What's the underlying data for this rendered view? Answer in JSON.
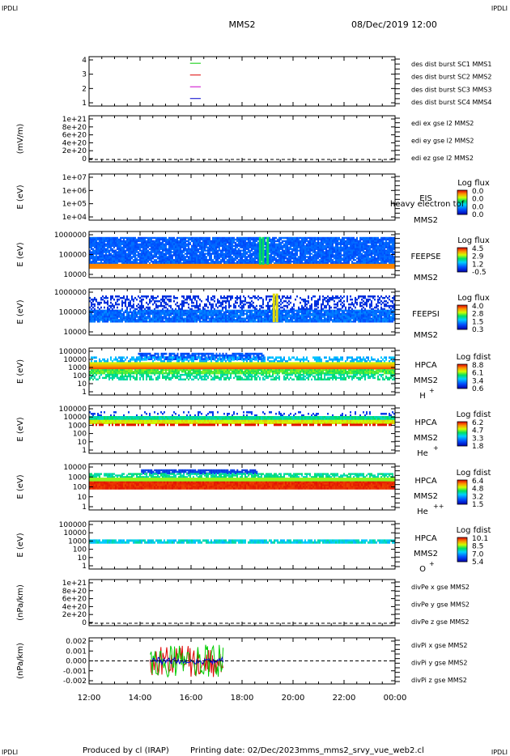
{
  "header": {
    "corner_tl": "IPDLI",
    "corner_tr": "IPDLI",
    "corner_bl": "IPDLI",
    "corner_br": "IPDLI",
    "spacecraft": "MMS2",
    "datetime": "08/Dec/2019 12:00"
  },
  "footer": {
    "produced": "Produced by cl (IRAP)",
    "printing": "Printing date: 02/Dec/2023",
    "script": "mms_mms2_srvy_vue_web2.cl"
  },
  "chart_data": {
    "type": "spectrogram-stack",
    "x_ticks": [
      "12:00",
      "14:00",
      "16:00",
      "18:00",
      "20:00",
      "22:00",
      "00:00"
    ],
    "panels": [
      {
        "id": "burst",
        "ylabel": "",
        "yticks": [
          "4",
          "3",
          "2",
          "1"
        ],
        "legend": [
          {
            "text": "des dist burst SC1 MMS1",
            "color": "#0000cc"
          },
          {
            "text": "des dist burst SC2 MMS2",
            "color": "#cc00cc"
          },
          {
            "text": "des dist burst SC3 MMS3",
            "color": "#dd0000"
          },
          {
            "text": "des dist burst SC4 MMS4",
            "color": "#00cc00"
          }
        ],
        "markers": [
          {
            "level": 4,
            "color": "#00cc00"
          },
          {
            "level": 3,
            "color": "#dd0000"
          },
          {
            "level": 2,
            "color": "#cc00cc"
          },
          {
            "level": 1,
            "color": "#0000cc"
          }
        ]
      },
      {
        "id": "edi",
        "ylabel": "(mV/m)",
        "yticks": [
          "1e+21",
          "8e+20",
          "6e+20",
          "4e+20",
          "2e+20",
          "0"
        ],
        "legend": [
          {
            "text": "edi ex gse l2 MMS2",
            "color": "#dd0000"
          },
          {
            "text": "edi ey gse l2 MMS2",
            "color": "#00cc00"
          },
          {
            "text": "edi ez gse l2 MMS2",
            "color": "#0000cc"
          }
        ]
      },
      {
        "id": "eis",
        "ylabel": "E (eV)",
        "yticks": [
          "1e+07",
          "1e+06",
          "1e+05",
          "1e+04"
        ],
        "inst": "EIS",
        "inst2": "MMS2",
        "extra": "heavy electron tof",
        "cbar_title": "Log flux",
        "cbar_ticks": [
          "0.0",
          "0.0",
          "0.0",
          "0.0"
        ]
      },
      {
        "id": "feepse",
        "ylabel": "E (eV)",
        "yticks": [
          "1000000",
          "100000",
          "10000"
        ],
        "inst": "FEEPSE",
        "inst2": "MMS2",
        "cbar_title": "Log flux",
        "cbar_ticks": [
          "4.5",
          "2.9",
          "1.2",
          "-0.5"
        ]
      },
      {
        "id": "feepsi",
        "ylabel": "E (eV)",
        "yticks": [
          "1000000",
          "100000",
          "10000"
        ],
        "inst": "FEEPSI",
        "inst2": "MMS2",
        "cbar_title": "Log flux",
        "cbar_ticks": [
          "4.0",
          "2.8",
          "1.5",
          "0.3"
        ]
      },
      {
        "id": "hpca_h",
        "ylabel": "E (eV)",
        "yticks": [
          "100000",
          "10000",
          "1000",
          "100",
          "10",
          "1"
        ],
        "inst": "HPCA",
        "inst2": "MMS2",
        "species": "H",
        "charge": "+",
        "cbar_title": "Log fdist",
        "cbar_ticks": [
          "8.8",
          "6.1",
          "3.4",
          "0.6"
        ]
      },
      {
        "id": "hpca_he",
        "ylabel": "E (eV)",
        "yticks": [
          "100000",
          "10000",
          "1000",
          "100",
          "10",
          "1"
        ],
        "inst": "HPCA",
        "inst2": "MMS2",
        "species": "He",
        "charge": "+",
        "cbar_title": "Log fdist",
        "cbar_ticks": [
          "6.2",
          "4.7",
          "3.3",
          "1.8"
        ]
      },
      {
        "id": "hpca_hepp",
        "ylabel": "E (eV)",
        "yticks": [
          "10000",
          "1000",
          "100",
          "10",
          "1"
        ],
        "inst": "HPCA",
        "inst2": "MMS2",
        "species": "He",
        "charge": "++",
        "cbar_title": "Log fdist",
        "cbar_ticks": [
          "6.4",
          "4.8",
          "3.2",
          "1.5"
        ]
      },
      {
        "id": "hpca_o",
        "ylabel": "E (eV)",
        "yticks": [
          "100000",
          "10000",
          "1000",
          "100",
          "10",
          "1"
        ],
        "inst": "HPCA",
        "inst2": "MMS2",
        "species": "O",
        "charge": "+",
        "cbar_title": "Log fdist",
        "cbar_ticks": [
          "10.1",
          "8.5",
          "7.0",
          "5.4"
        ]
      },
      {
        "id": "divpe",
        "ylabel": "(nPa/km)",
        "yticks": [
          "1e+21",
          "8e+20",
          "6e+20",
          "4e+20",
          "2e+20",
          "0"
        ],
        "legend": [
          {
            "text": "divPe x gse MMS2",
            "color": "#dd0000"
          },
          {
            "text": "divPe y gse MMS2",
            "color": "#00cc00"
          },
          {
            "text": "divPe z gse MMS2",
            "color": "#0000cc"
          }
        ]
      },
      {
        "id": "divpi",
        "ylabel": "(nPa/km)",
        "yticks": [
          "0.002",
          "0.001",
          "0.000",
          "-0.001",
          "-0.002"
        ],
        "legend": [
          {
            "text": "divPi x gse MMS2",
            "color": "#dd0000"
          },
          {
            "text": "divPi y gse MMS2",
            "color": "#00cc00"
          },
          {
            "text": "divPi z gse MMS2",
            "color": "#0000cc"
          }
        ]
      }
    ]
  }
}
